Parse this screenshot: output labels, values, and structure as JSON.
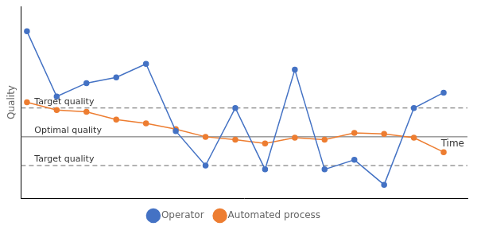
{
  "chart_data": {
    "type": "line",
    "x": [
      0,
      1,
      2,
      3,
      4,
      5,
      6,
      7,
      8,
      9,
      10,
      11,
      12,
      13,
      14
    ],
    "series": [
      {
        "name": "Operator",
        "color": "#4472c4",
        "marker": "circle",
        "values": [
          9.2,
          5.8,
          6.5,
          6.8,
          7.5,
          4.0,
          2.2,
          5.2,
          2.0,
          7.2,
          2.0,
          2.5,
          1.2,
          5.2,
          6.0
        ]
      },
      {
        "name": "Automated process",
        "color": "#ed7d31",
        "marker": "circle",
        "values": [
          5.5,
          5.1,
          5.0,
          4.6,
          4.4,
          4.1,
          3.7,
          3.55,
          3.35,
          3.65,
          3.55,
          3.9,
          3.85,
          3.65,
          2.9
        ]
      }
    ],
    "hlines": [
      {
        "y": 5.2,
        "label": "Target quality",
        "line_style": "dashed"
      },
      {
        "y": 3.7,
        "label": "Optimal quality",
        "line_style": "solid"
      },
      {
        "y": 2.2,
        "label": "Target quality",
        "line_style": "dashed"
      }
    ],
    "xlabel": "Time",
    "ylabel": "Quality",
    "xlim": [
      -0.2,
      14.8
    ],
    "ylim": [
      0.5,
      10.5
    ],
    "grid": false,
    "tick_labels": false,
    "legend": "bottom"
  }
}
